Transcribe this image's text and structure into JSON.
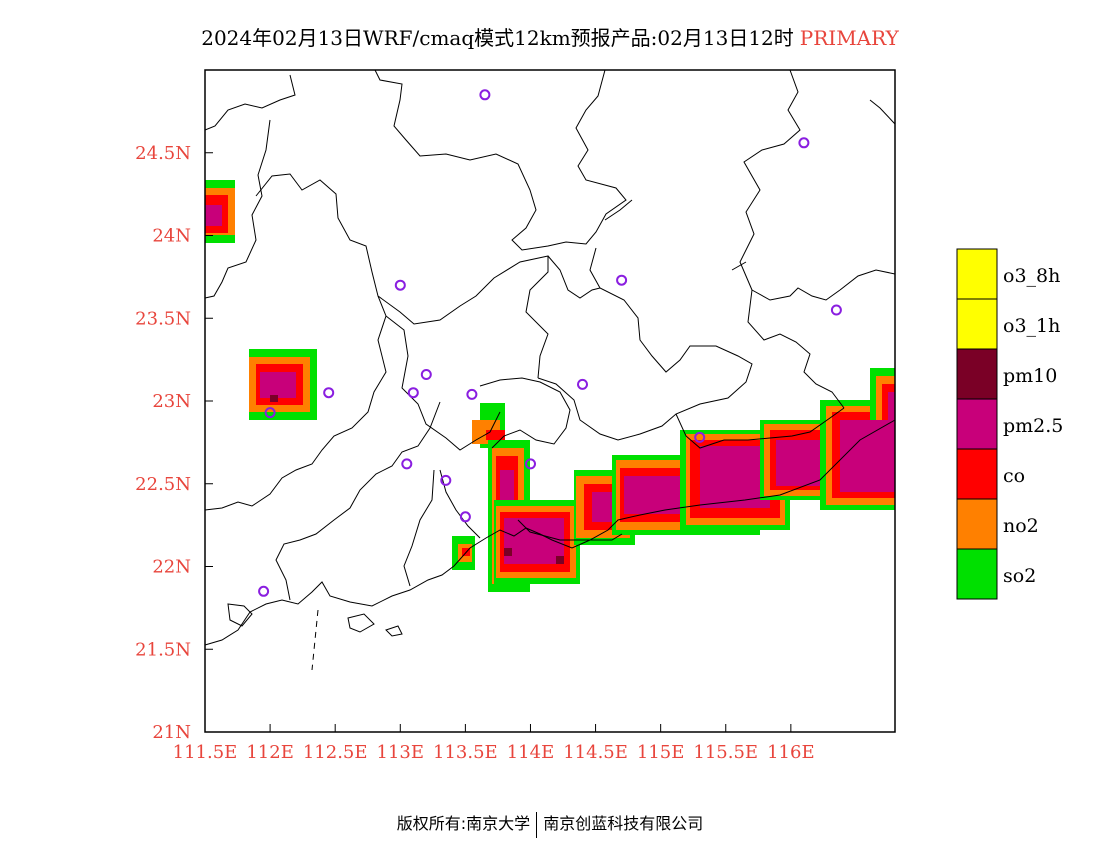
{
  "title": {
    "text": "2024年02月13日WRF/cmaq模式12km预报产品:02月13日12时",
    "tag": "PRIMARY",
    "tag_color": "#e8453c"
  },
  "axes": {
    "x_ticks": [
      "111.5E",
      "112E",
      "112.5E",
      "113E",
      "113.5E",
      "114E",
      "114.5E",
      "115E",
      "115.5E",
      "116E"
    ],
    "x_values": [
      111.5,
      112,
      112.5,
      113,
      113.5,
      114,
      114.5,
      115,
      115.5,
      116
    ],
    "y_ticks": [
      "21N",
      "21.5N",
      "22N",
      "22.5N",
      "23N",
      "23.5N",
      "24N",
      "24.5N"
    ],
    "y_values": [
      21,
      21.5,
      22,
      22.5,
      23,
      23.5,
      24,
      24.5
    ],
    "lon_range": [
      111.5,
      116.8
    ],
    "lat_range": [
      21,
      25
    ],
    "label_color": "#e8453c"
  },
  "legend": {
    "items": [
      {
        "label": "o3_8h",
        "color": "#ffff00"
      },
      {
        "label": "o3_1h",
        "color": "#ffff00"
      },
      {
        "label": "pm10",
        "color": "#7a0026"
      },
      {
        "label": "pm2.5",
        "color": "#c8007a"
      },
      {
        "label": "co",
        "color": "#ff0000"
      },
      {
        "label": "no2",
        "color": "#ff8000"
      },
      {
        "label": "so2",
        "color": "#00e000"
      }
    ]
  },
  "stations": [
    [
      113.65,
      24.85
    ],
    [
      116.1,
      24.56
    ],
    [
      113.0,
      23.7
    ],
    [
      114.7,
      23.73
    ],
    [
      116.35,
      23.55
    ],
    [
      112.45,
      23.05
    ],
    [
      113.2,
      23.16
    ],
    [
      113.1,
      23.05
    ],
    [
      113.55,
      23.04
    ],
    [
      114.4,
      23.1
    ],
    [
      112.0,
      22.93
    ],
    [
      113.05,
      22.62
    ],
    [
      114.0,
      22.62
    ],
    [
      113.35,
      22.52
    ],
    [
      115.3,
      22.78
    ],
    [
      113.5,
      22.3
    ],
    [
      111.95,
      21.85
    ]
  ],
  "footer": {
    "left": "版权所有:南京大学",
    "right": "南京创蓝科技有限公司"
  }
}
